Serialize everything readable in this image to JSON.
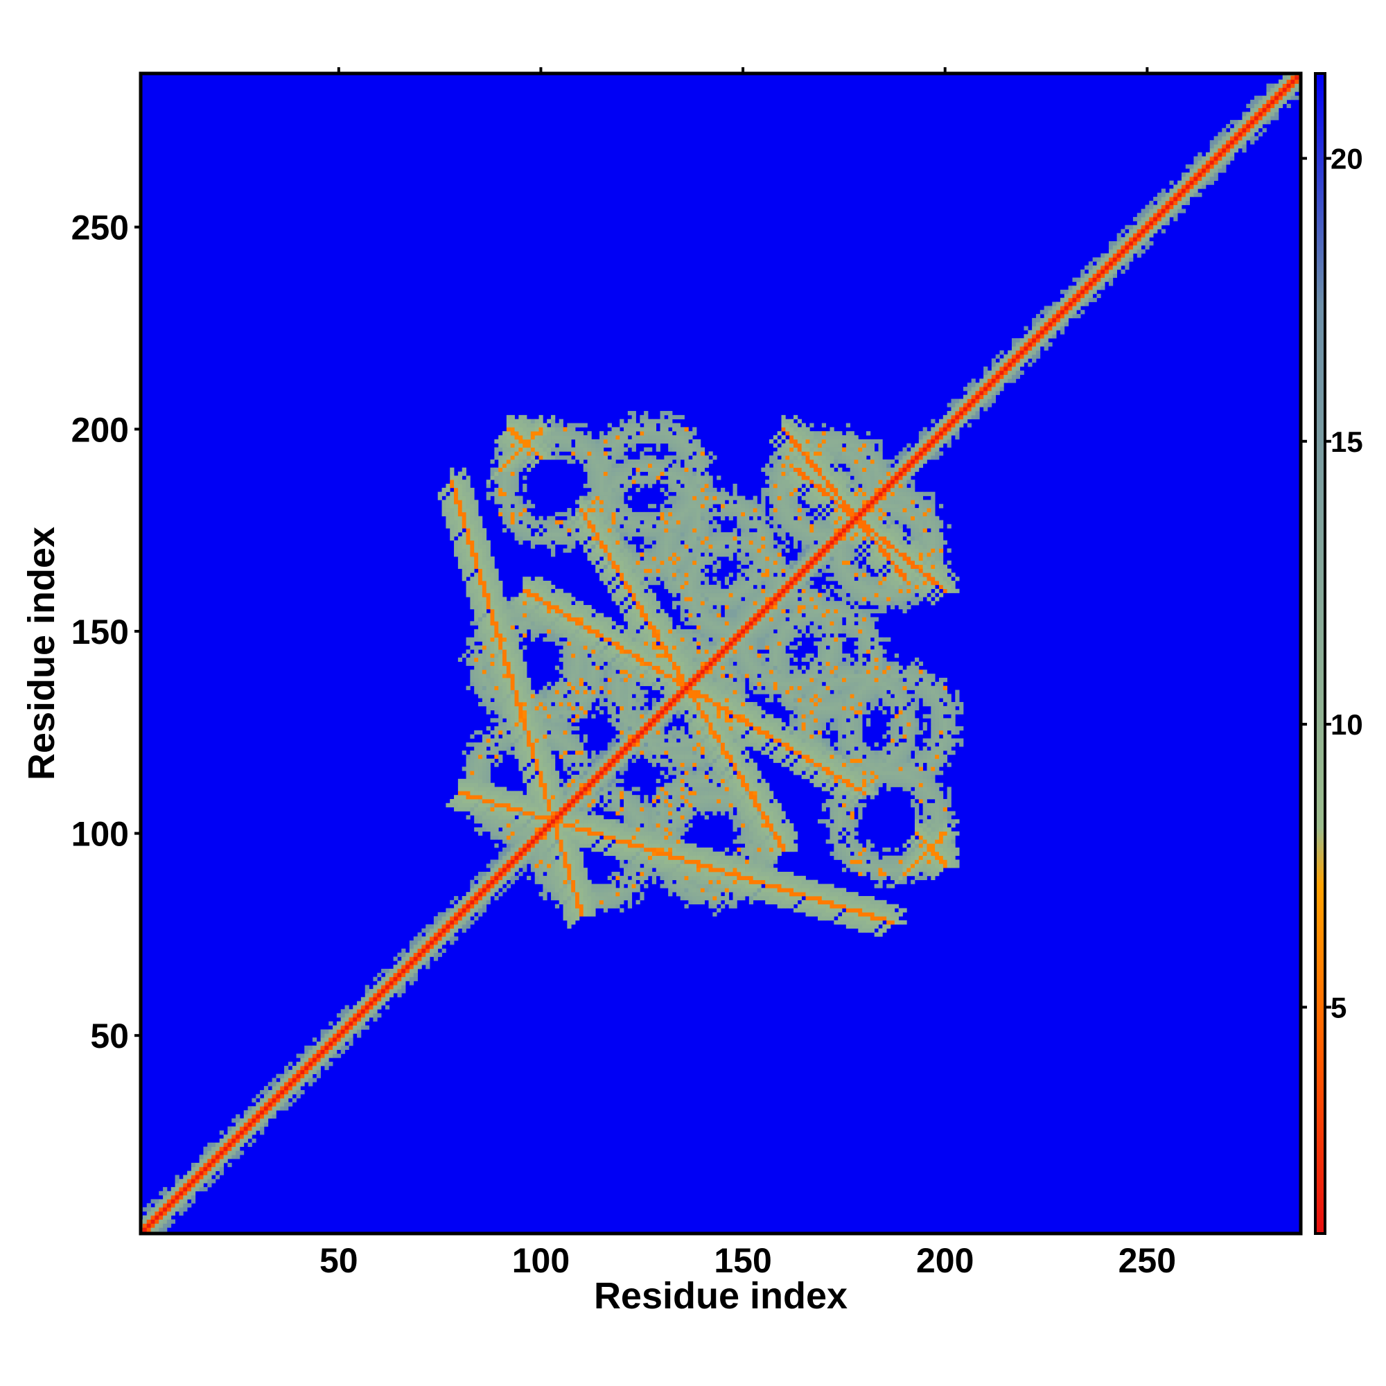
{
  "chart_data": {
    "type": "heatmap",
    "title": "",
    "xlabel": "Residue index",
    "ylabel": "Residue index",
    "xlim": [
      1,
      288
    ],
    "ylim": [
      1,
      288
    ],
    "xticks": [
      50,
      100,
      150,
      200,
      250
    ],
    "yticks": [
      50,
      100,
      150,
      200,
      250
    ],
    "x_tick_labels": [
      "50",
      "100",
      "150",
      "200",
      "250"
    ],
    "y_tick_labels": [
      "50",
      "100",
      "150",
      "200",
      "250"
    ],
    "colorbar": {
      "range": [
        1,
        21.5
      ],
      "ticks": [
        5,
        10,
        15,
        20
      ],
      "tick_labels": [
        "5",
        "10",
        "15",
        "20"
      ],
      "colors": [
        "#e81010",
        "#ff5a00",
        "#ffa200",
        "#9bbc8c",
        "#6d8fa8",
        "#0000f5"
      ],
      "stops": [
        0,
        0.15,
        0.3,
        0.35,
        0.8,
        1
      ]
    },
    "background_value": 21.5,
    "background_color": "#0000f5",
    "features": [
      {
        "kind": "main-diagonal",
        "from": 1,
        "to": 288,
        "value": 1.5,
        "halo_width": 3
      },
      {
        "kind": "cross-diagonal",
        "from": [
          78,
          187
        ],
        "to": [
          110,
          80
        ],
        "value": 5.5
      },
      {
        "kind": "cross-diagonal",
        "from": [
          110,
          180
        ],
        "to": [
          160,
          96
        ],
        "value": 5.5
      },
      {
        "kind": "cross-diagonal",
        "from": [
          160,
          200
        ],
        "to": [
          190,
          163
        ],
        "value": 5
      },
      {
        "kind": "cross-diagonal",
        "from": [
          92,
          200
        ],
        "to": [
          100,
          193
        ],
        "value": 6
      },
      {
        "kind": "cross-diagonal",
        "from": [
          190,
          90
        ],
        "to": [
          200,
          100
        ],
        "value": 6
      },
      {
        "kind": "ring",
        "center": [
          97,
          143
        ],
        "radius": 12,
        "value": 11
      },
      {
        "kind": "ring",
        "center": [
          97,
          113
        ],
        "radius": 13,
        "value": 11
      },
      {
        "kind": "ring",
        "center": [
          141,
          101
        ],
        "radius": 12,
        "value": 11
      },
      {
        "kind": "ring",
        "center": [
          127,
          188
        ],
        "radius": 12,
        "value": 11
      },
      {
        "kind": "ring",
        "center": [
          170,
          185
        ],
        "radius": 11,
        "value": 11
      },
      {
        "kind": "ring",
        "center": [
          185,
          172
        ],
        "radius": 12,
        "value": 11
      },
      {
        "kind": "ring",
        "center": [
          143,
          170
        ],
        "radius": 12,
        "value": 11
      },
      {
        "kind": "ring",
        "center": [
          186,
          103
        ],
        "radius": 12,
        "value": 11
      },
      {
        "kind": "ring",
        "center": [
          178,
          127
        ],
        "radius": 12,
        "value": 11
      },
      {
        "kind": "ring",
        "center": [
          161,
          148
        ],
        "radius": 11,
        "value": 11
      },
      {
        "kind": "ring",
        "center": [
          132,
          135
        ],
        "radius": 13,
        "value": 11
      }
    ]
  }
}
